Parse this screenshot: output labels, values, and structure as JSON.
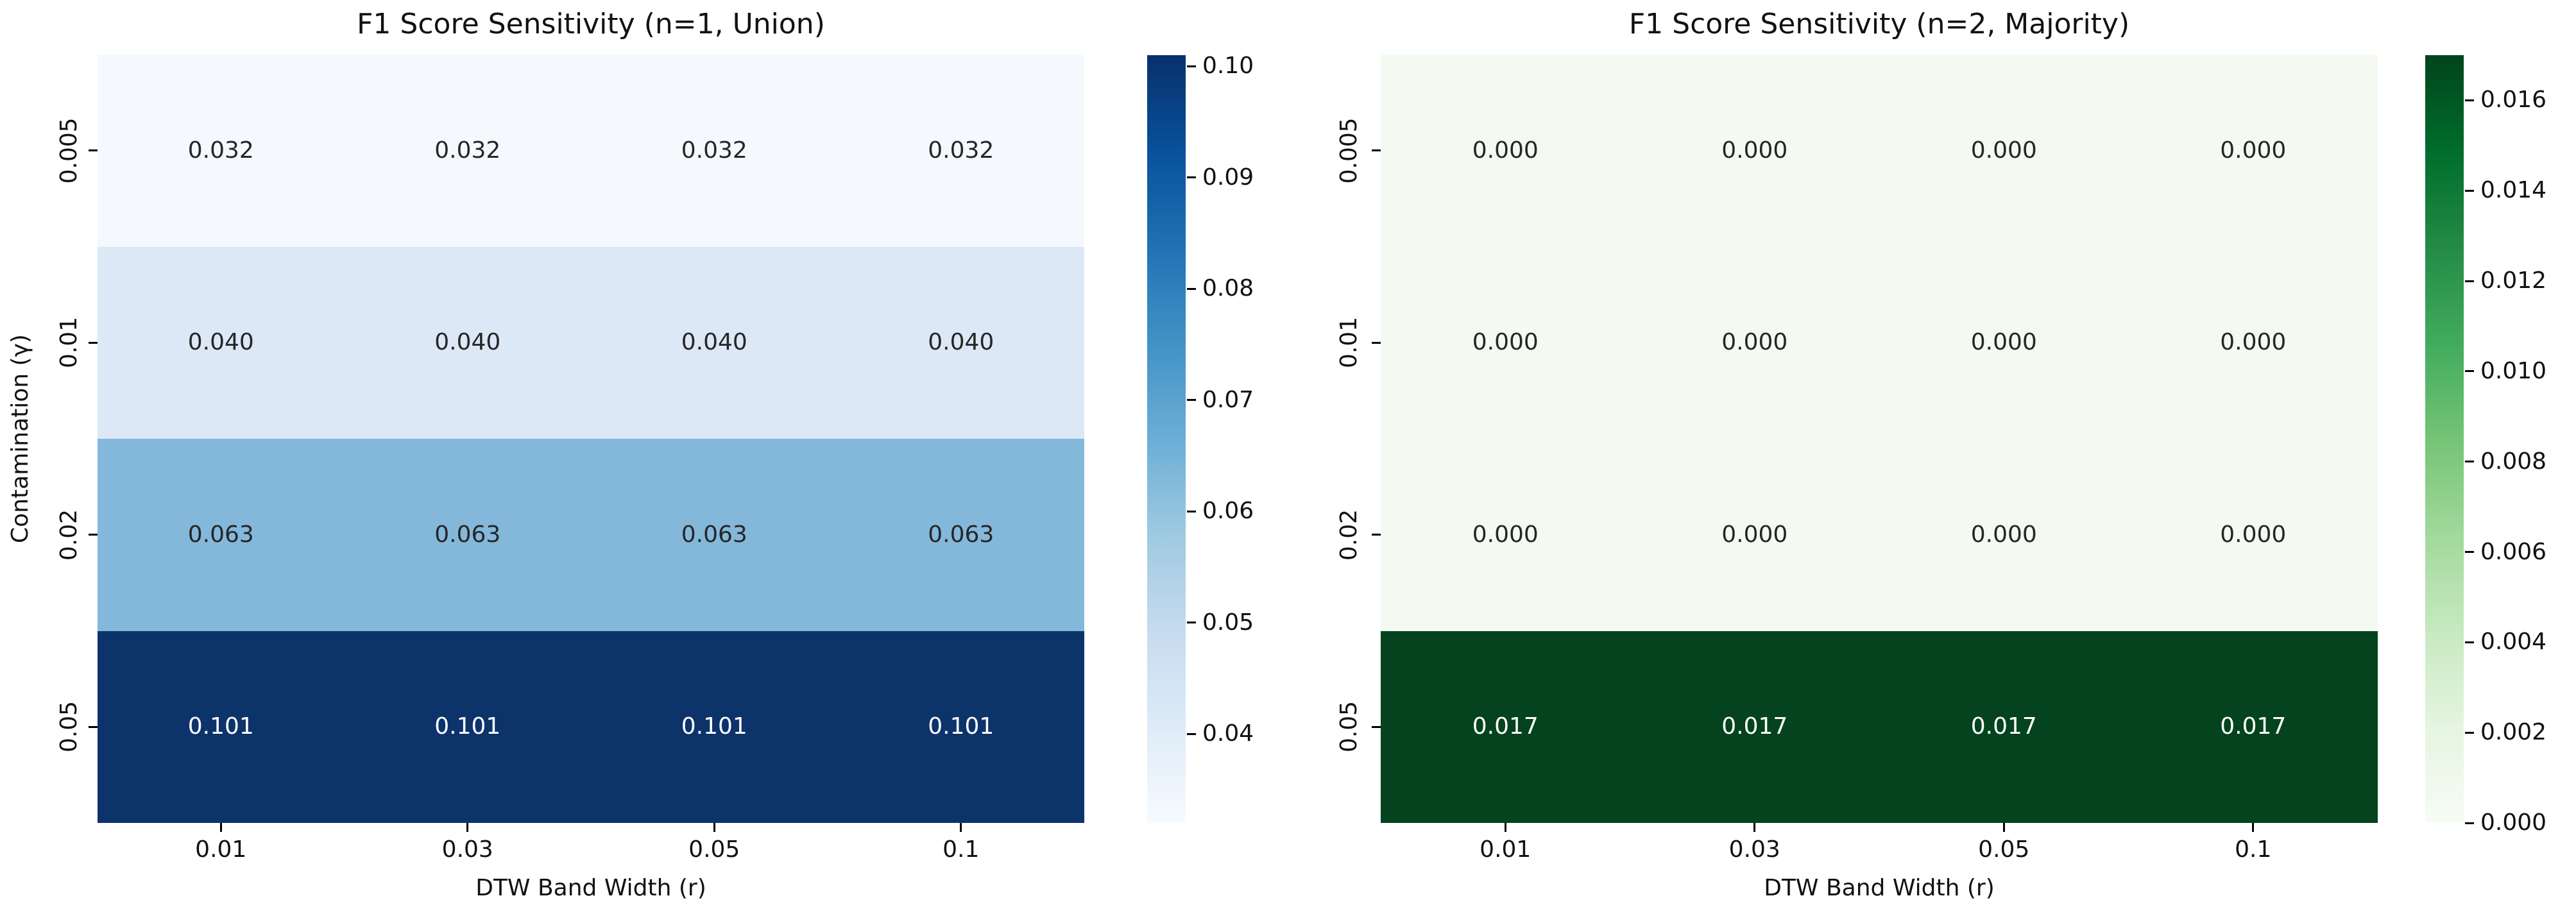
{
  "figure": {
    "background": "#ffffff",
    "annotation_text_dark": "#262626",
    "annotation_text_light": "#ffffff",
    "tick_color": "#000000"
  },
  "chart_data": [
    {
      "type": "heatmap",
      "title": "F1 Score Sensitivity (n=1, Union)",
      "xlabel": "DTW Band Width (r)",
      "ylabel": "Contamination (γ)",
      "x_categories": [
        "0.01",
        "0.03",
        "0.05",
        "0.1"
      ],
      "y_categories": [
        "0.005",
        "0.01",
        "0.02",
        "0.05"
      ],
      "values": [
        [
          0.032,
          0.032,
          0.032,
          0.032
        ],
        [
          0.04,
          0.04,
          0.04,
          0.04
        ],
        [
          0.063,
          0.063,
          0.063,
          0.063
        ],
        [
          0.101,
          0.101,
          0.101,
          0.101
        ]
      ],
      "value_labels": [
        [
          "0.032",
          "0.032",
          "0.032",
          "0.032"
        ],
        [
          "0.040",
          "0.040",
          "0.040",
          "0.040"
        ],
        [
          "0.063",
          "0.063",
          "0.063",
          "0.063"
        ],
        [
          "0.101",
          "0.101",
          "0.101",
          "0.101"
        ]
      ],
      "colormap": "Blues",
      "row_colors": [
        "#f5f9fe",
        "#dce8f6",
        "#84b8da",
        "#0d336b"
      ],
      "row_text_light": [
        false,
        false,
        false,
        true
      ],
      "colorbar": {
        "vmin": 0.032,
        "vmax": 0.101,
        "tick_values": [
          0.1,
          0.09,
          0.08,
          0.07,
          0.06,
          0.05,
          0.04
        ],
        "tick_labels": [
          "0.10",
          "0.09",
          "0.08",
          "0.07",
          "0.06",
          "0.05",
          "0.04"
        ],
        "gradient_bottom_to_top": [
          "#f7fbff",
          "#deebf7",
          "#c6dbef",
          "#9ecae1",
          "#6baed6",
          "#4292c6",
          "#2171b5",
          "#08519c",
          "#08306b"
        ]
      }
    },
    {
      "type": "heatmap",
      "title": "F1 Score Sensitivity (n=2, Majority)",
      "xlabel": "DTW Band Width (r)",
      "ylabel": "",
      "x_categories": [
        "0.01",
        "0.03",
        "0.05",
        "0.1"
      ],
      "y_categories": [
        "0.005",
        "0.01",
        "0.02",
        "0.05"
      ],
      "values": [
        [
          0.0,
          0.0,
          0.0,
          0.0
        ],
        [
          0.0,
          0.0,
          0.0,
          0.0
        ],
        [
          0.0,
          0.0,
          0.0,
          0.0
        ],
        [
          0.017,
          0.017,
          0.017,
          0.017
        ]
      ],
      "value_labels": [
        [
          "0.000",
          "0.000",
          "0.000",
          "0.000"
        ],
        [
          "0.000",
          "0.000",
          "0.000",
          "0.000"
        ],
        [
          "0.000",
          "0.000",
          "0.000",
          "0.000"
        ],
        [
          "0.017",
          "0.017",
          "0.017",
          "0.017"
        ]
      ],
      "colormap": "Greens",
      "row_colors": [
        "#f4faf1",
        "#f4faf1",
        "#f4faf1",
        "#04431d"
      ],
      "row_text_light": [
        false,
        false,
        false,
        true
      ],
      "colorbar": {
        "vmin": 0.0,
        "vmax": 0.017,
        "tick_values": [
          0.016,
          0.014,
          0.012,
          0.01,
          0.008,
          0.006,
          0.004,
          0.002,
          0.0
        ],
        "tick_labels": [
          "0.016",
          "0.014",
          "0.012",
          "0.010",
          "0.008",
          "0.006",
          "0.004",
          "0.002",
          "0.000"
        ],
        "gradient_bottom_to_top": [
          "#f7fcf5",
          "#e5f5e0",
          "#c7e9c0",
          "#a1d99b",
          "#74c476",
          "#41ab5d",
          "#238b45",
          "#006d2c",
          "#00441b"
        ]
      }
    }
  ]
}
